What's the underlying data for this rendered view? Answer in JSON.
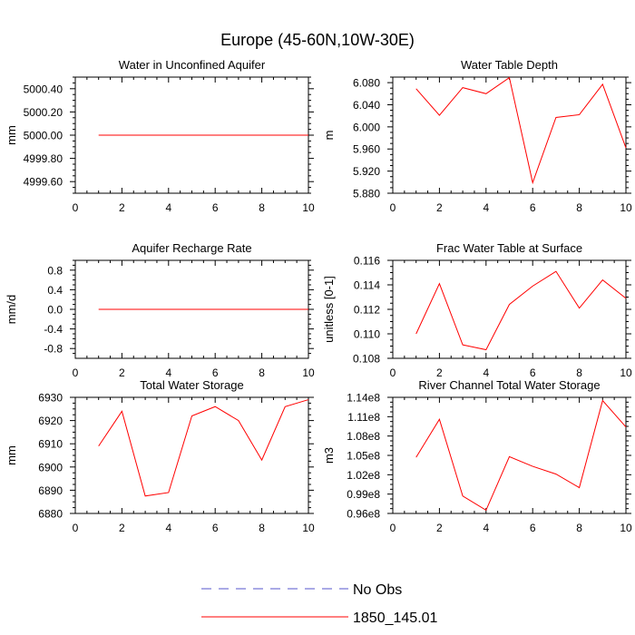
{
  "figure_title": "Europe (45-60N,10W-30E)",
  "colors": {
    "model_line": "#ff0000",
    "obs_line": "#5555cc",
    "axis": "#000000"
  },
  "legend": [
    {
      "label": "No Obs",
      "style": "dashed",
      "color": "#5555cc"
    },
    {
      "label": "1850_145.01",
      "style": "solid",
      "color": "#ff0000"
    }
  ],
  "chart_data": [
    {
      "id": "p1",
      "type": "line",
      "title": "Water in Unconfined Aquifer",
      "ylabel": "mm",
      "xlabel": "",
      "xlim": [
        0,
        10
      ],
      "ylim": [
        4999.5,
        5000.5
      ],
      "xticks": [
        0,
        2,
        4,
        6,
        8,
        10
      ],
      "yticks": [
        4999.6,
        4999.8,
        5000.0,
        5000.2,
        5000.4
      ],
      "ytick_labels": [
        "4999.60",
        "4999.80",
        "5000.00",
        "5000.20",
        "5000.40"
      ],
      "series": [
        {
          "name": "1850_145.01",
          "x": [
            1,
            2,
            3,
            4,
            5,
            6,
            7,
            8,
            9,
            10
          ],
          "values": [
            5000,
            5000,
            5000,
            5000,
            5000,
            5000,
            5000,
            5000,
            5000,
            5000
          ]
        }
      ]
    },
    {
      "id": "p2",
      "type": "line",
      "title": "Water Table Depth",
      "ylabel": "m",
      "xlabel": "",
      "xlim": [
        0,
        10
      ],
      "ylim": [
        5.88,
        6.09
      ],
      "xticks": [
        0,
        2,
        4,
        6,
        8,
        10
      ],
      "yticks": [
        5.88,
        5.92,
        5.96,
        6.0,
        6.04,
        6.08
      ],
      "ytick_labels": [
        "5.880",
        "5.920",
        "5.960",
        "6.000",
        "6.040",
        "6.080"
      ],
      "series": [
        {
          "name": "1850_145.01",
          "x": [
            1,
            2,
            3,
            4,
            5,
            6,
            7,
            8,
            9,
            10
          ],
          "values": [
            6.069,
            6.021,
            6.071,
            6.06,
            6.089,
            5.899,
            6.017,
            6.022,
            6.077,
            5.962
          ]
        }
      ]
    },
    {
      "id": "p3",
      "type": "line",
      "title": "Aquifer Recharge Rate",
      "ylabel": "mm/d",
      "xlabel": "",
      "xlim": [
        0,
        10
      ],
      "ylim": [
        -1.0,
        1.0
      ],
      "xticks": [
        0,
        2,
        4,
        6,
        8,
        10
      ],
      "yticks": [
        -0.8,
        -0.4,
        0.0,
        0.4,
        0.8
      ],
      "ytick_labels": [
        "-0.8",
        "-0.4",
        "0.0",
        "0.4",
        "0.8"
      ],
      "series": [
        {
          "name": "1850_145.01",
          "x": [
            1,
            2,
            3,
            4,
            5,
            6,
            7,
            8,
            9,
            10
          ],
          "values": [
            0,
            0,
            0,
            0,
            0,
            0,
            0,
            0,
            0,
            0
          ]
        }
      ]
    },
    {
      "id": "p4",
      "type": "line",
      "title": "Frac Water Table at Surface",
      "ylabel": "unitless [0-1]",
      "xlabel": "",
      "xlim": [
        0,
        10
      ],
      "ylim": [
        0.108,
        0.116
      ],
      "xticks": [
        0,
        2,
        4,
        6,
        8,
        10
      ],
      "yticks": [
        0.108,
        0.11,
        0.112,
        0.114,
        0.116
      ],
      "ytick_labels": [
        "0.108",
        "0.110",
        "0.112",
        "0.114",
        "0.116"
      ],
      "series": [
        {
          "name": "1850_145.01",
          "x": [
            1,
            2,
            3,
            4,
            5,
            6,
            7,
            8,
            9,
            10
          ],
          "values": [
            0.11,
            0.1141,
            0.1091,
            0.1087,
            0.1124,
            0.1139,
            0.1151,
            0.1121,
            0.1144,
            0.1129
          ]
        }
      ]
    },
    {
      "id": "p5",
      "type": "line",
      "title": "Total Water Storage",
      "ylabel": "mm",
      "xlabel": "",
      "xlim": [
        0,
        10
      ],
      "ylim": [
        6880,
        6930
      ],
      "xticks": [
        0,
        2,
        4,
        6,
        8,
        10
      ],
      "yticks": [
        6880,
        6890,
        6900,
        6910,
        6920,
        6930
      ],
      "ytick_labels": [
        "6880",
        "6890",
        "6900",
        "6910",
        "6920",
        "6930"
      ],
      "series": [
        {
          "name": "1850_145.01",
          "x": [
            1,
            2,
            3,
            4,
            5,
            6,
            7,
            8,
            9,
            10
          ],
          "values": [
            6909,
            6924,
            6887.5,
            6889,
            6922,
            6926,
            6920,
            6903,
            6926,
            6929
          ]
        }
      ]
    },
    {
      "id": "p6",
      "type": "line",
      "title": "River Channel Total Water Storage",
      "ylabel": "m3",
      "xlabel": "",
      "xlim": [
        0,
        10
      ],
      "ylim": [
        96000000.0,
        114000000.0
      ],
      "xticks": [
        0,
        2,
        4,
        6,
        8,
        10
      ],
      "yticks": [
        96000000.0,
        99000000.0,
        102000000.0,
        105000000.0,
        108000000.0,
        111000000.0,
        114000000.0
      ],
      "ytick_labels": [
        "0.96e8",
        "0.99e8",
        "1.02e8",
        "1.05e8",
        "1.08e8",
        "1.11e8",
        "1.14e8"
      ],
      "series": [
        {
          "name": "1850_145.01",
          "x": [
            1,
            2,
            3,
            4,
            5,
            6,
            7,
            8,
            9,
            10
          ],
          "values": [
            104700000.0,
            110600000.0,
            98700000.0,
            96500000.0,
            104800000.0,
            103300000.0,
            102100000.0,
            100000000.0,
            113500000.0,
            109400000.0
          ]
        }
      ]
    }
  ]
}
